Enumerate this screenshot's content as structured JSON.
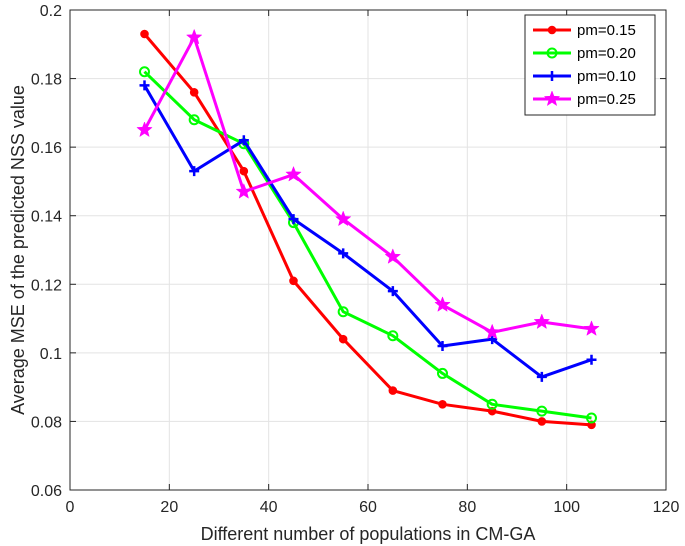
{
  "chart_data": {
    "type": "line",
    "title": "",
    "xlabel": "Different number of populations in CM-GA",
    "ylabel": "Average MSE of the predicted NSS value",
    "xlim": [
      0,
      120
    ],
    "ylim": [
      0.06,
      0.2
    ],
    "xticks": [
      0,
      20,
      40,
      60,
      80,
      100,
      120
    ],
    "yticks": [
      0.06,
      0.08,
      0.1,
      0.12,
      0.14,
      0.16,
      0.18,
      0.2
    ],
    "xtick_labels": [
      "0",
      "20",
      "40",
      "60",
      "80",
      "100",
      "120"
    ],
    "ytick_labels": [
      "0.06",
      "0.08",
      "0.1",
      "0.12",
      "0.14",
      "0.16",
      "0.18",
      "0.2"
    ],
    "grid": true,
    "legend_position": "top-right",
    "x": [
      15,
      25,
      35,
      45,
      55,
      65,
      75,
      85,
      95,
      105
    ],
    "series": [
      {
        "name": "pm=0.15",
        "color": "#ff0000",
        "marker": "dot",
        "values": [
          0.193,
          0.176,
          0.153,
          0.121,
          0.104,
          0.089,
          0.085,
          0.083,
          0.08,
          0.079
        ]
      },
      {
        "name": "pm=0.20",
        "color": "#00ff00",
        "marker": "circle",
        "values": [
          0.182,
          0.168,
          0.161,
          0.138,
          0.112,
          0.105,
          0.094,
          0.085,
          0.083,
          0.081
        ]
      },
      {
        "name": "pm=0.10",
        "color": "#0000ff",
        "marker": "plus",
        "values": [
          0.178,
          0.153,
          0.162,
          0.139,
          0.129,
          0.118,
          0.102,
          0.104,
          0.093,
          0.098
        ]
      },
      {
        "name": "pm=0.25",
        "color": "#ff00ff",
        "marker": "star",
        "values": [
          0.165,
          0.192,
          0.147,
          0.152,
          0.139,
          0.128,
          0.114,
          0.106,
          0.109,
          0.107
        ]
      }
    ]
  }
}
